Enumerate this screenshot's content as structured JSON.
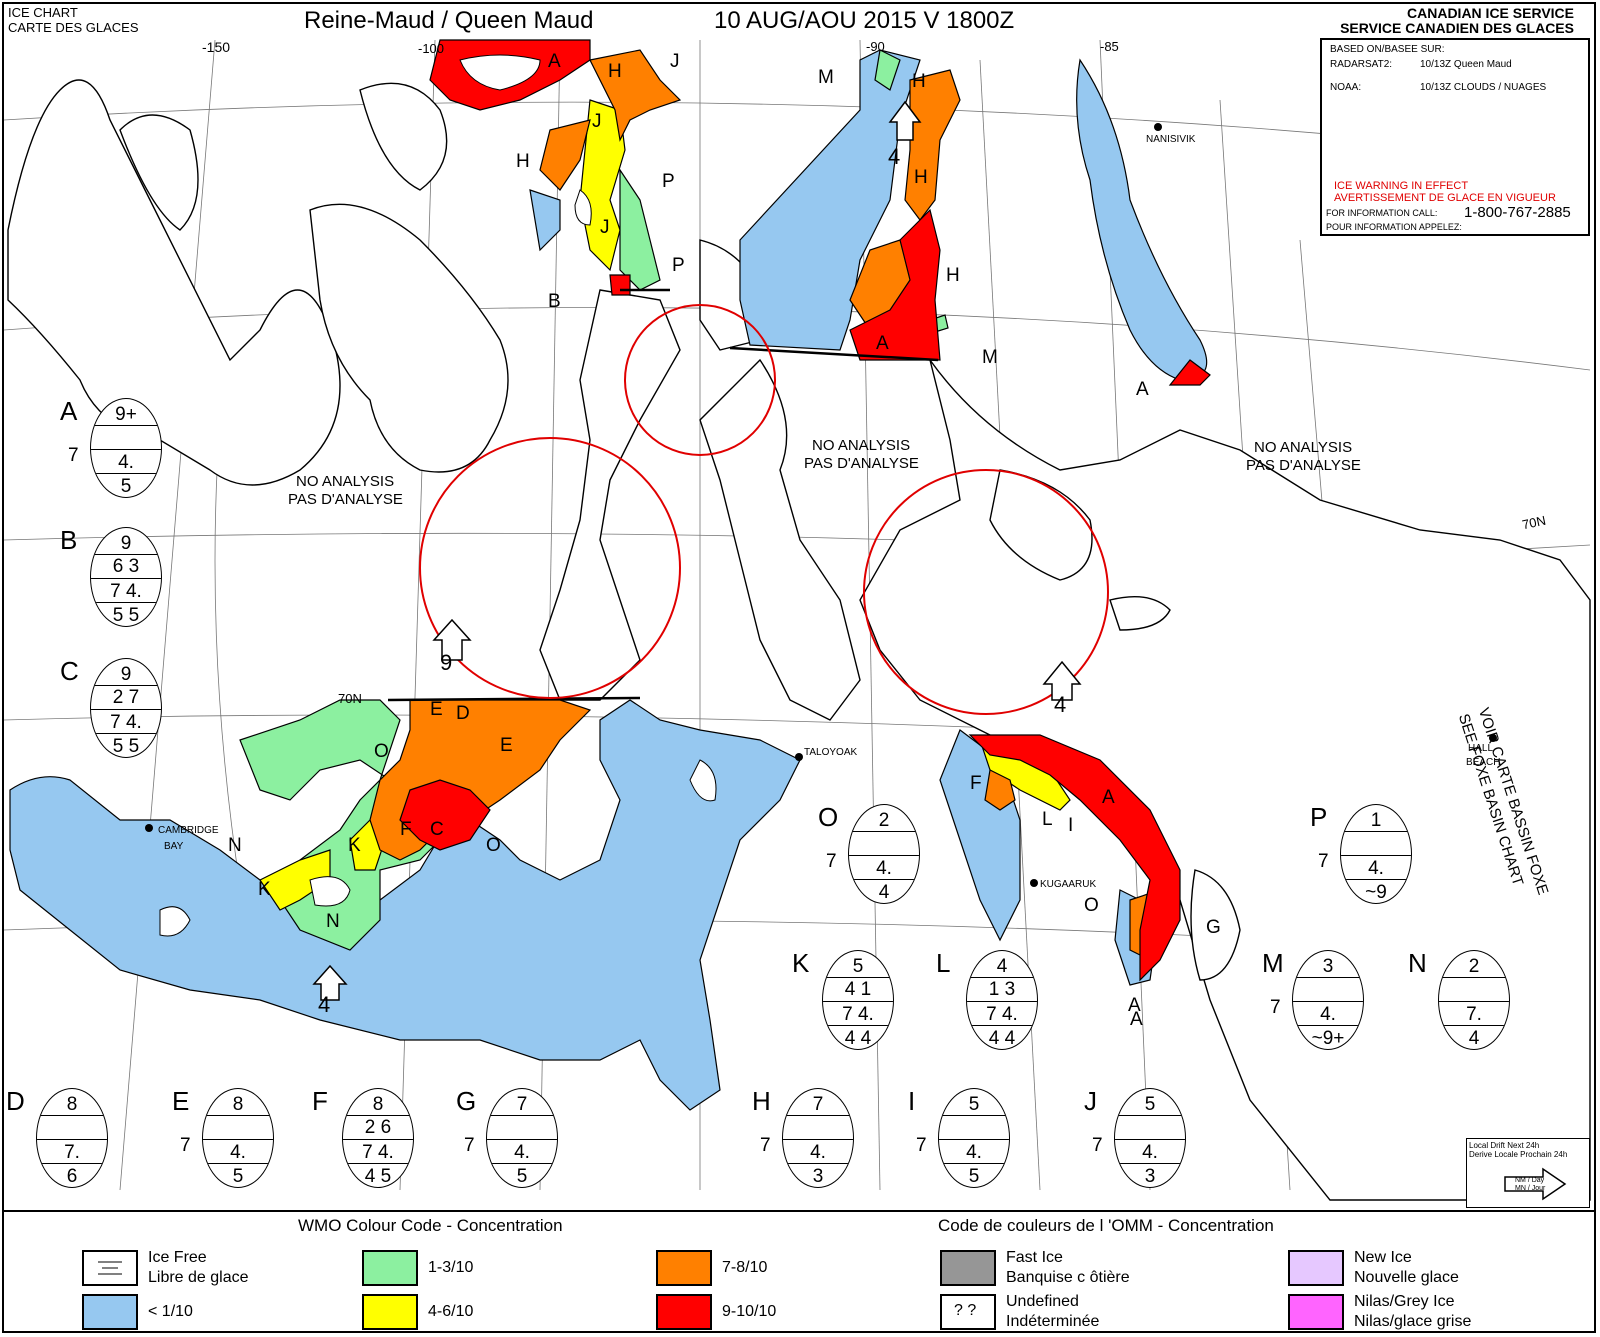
{
  "header": {
    "ice_chart": "ICE CHART",
    "carte_glaces": "CARTE DES GLACES",
    "region": "Reine-Maud / Queen Maud",
    "date": "10 AUG/AOU 2015  V 1800Z",
    "agency_en": "CANADIAN ICE SERVICE",
    "agency_fr": "SERVICE CANADIEN DES GLACES"
  },
  "info_box": {
    "based_on": "BASED ON/BASEE SUR:",
    "radarsat_label": "RADARSAT2:",
    "radarsat_value": "10/13Z Queen Maud",
    "noaa_label": "NOAA:",
    "noaa_value": "10/13Z CLOUDS / NUAGES",
    "warning_en": "ICE WARNING IN EFFECT",
    "warning_fr": "AVERTISSEMENT DE GLACE EN VIGUEUR",
    "info_call": "FOR INFORMATION CALL:",
    "info_fr": "POUR INFORMATION APPELEZ:",
    "phone": "1-800-767-2885"
  },
  "map_labels": {
    "lon_150": "-150",
    "lon_100": "-100",
    "lon_90": "-90",
    "lon_85": "-85",
    "lat_70n_left": "70N",
    "lat_70n_right": "70N",
    "no_analysis_en": "NO ANALYSIS",
    "no_analysis_fr": "PAS D'ANALYSE",
    "nanisivik": "NANISIVIK",
    "taloyoak": "TALOYOAK",
    "cambridge": "CAMBRIDGE",
    "bay": "BAY",
    "kugaaruk": "KUGAARUK",
    "hall": "HALL",
    "beach": "BEACH",
    "foxe_en": "SEE FOXE BASIN CHART",
    "foxe_fr": "VOIR CARTE BASSIN FOXE",
    "drift_1": "Local Drift Next 24h",
    "drift_2": "Derive Locale Prochain 24h",
    "drift_3": "NM / Day",
    "drift_4": "MN / Jour",
    "drift_arrow_values": [
      "9",
      "4",
      "4",
      "4"
    ]
  },
  "region_letters": [
    "A",
    "A",
    "A",
    "A",
    "A",
    "A",
    "B",
    "D",
    "E",
    "E",
    "F",
    "F",
    "C",
    "K",
    "K",
    "N",
    "N",
    "O",
    "O",
    "O",
    "J",
    "J",
    "J",
    "H",
    "H",
    "H",
    "H",
    "H",
    "P",
    "P",
    "M",
    "M",
    "L",
    "I",
    "G"
  ],
  "egg_codes": [
    {
      "letter": "A",
      "side": "7",
      "rows": [
        "9+",
        "",
        "4.",
        "5"
      ],
      "dividers": 4
    },
    {
      "letter": "B",
      "side": "",
      "rows": [
        "9",
        "6 3",
        "7 4.",
        "5 5"
      ],
      "dividers": 4
    },
    {
      "letter": "C",
      "side": "",
      "rows": [
        "9",
        "2 7",
        "7 4.",
        "5 5"
      ],
      "dividers": 4
    },
    {
      "letter": "O",
      "side": "7",
      "rows": [
        "2",
        "",
        "4.",
        "4"
      ],
      "dividers": 4
    },
    {
      "letter": "P",
      "side": "7",
      "rows": [
        "1",
        "",
        "4.",
        "~9"
      ],
      "dividers": 4
    },
    {
      "letter": "K",
      "side": "",
      "rows": [
        "5",
        "4 1",
        "7 4.",
        "4 4"
      ],
      "dividers": 4
    },
    {
      "letter": "L",
      "side": "",
      "rows": [
        "4",
        "1 3",
        "7 4.",
        "4 4"
      ],
      "dividers": 4
    },
    {
      "letter": "M",
      "side": "7",
      "rows": [
        "3",
        "",
        "4.",
        "~9+"
      ],
      "dividers": 4
    },
    {
      "letter": "N",
      "side": "",
      "rows": [
        "2",
        "",
        "7.",
        "4"
      ],
      "dividers": 4
    },
    {
      "letter": "D",
      "side": "",
      "rows": [
        "8",
        "",
        "7.",
        "6"
      ],
      "dividers": 4
    },
    {
      "letter": "E",
      "side": "7",
      "rows": [
        "8",
        "",
        "4.",
        "5"
      ],
      "dividers": 4
    },
    {
      "letter": "F",
      "side": "",
      "rows": [
        "8",
        "2 6",
        "7 4.",
        "4 5"
      ],
      "dividers": 4
    },
    {
      "letter": "G",
      "side": "7",
      "rows": [
        "7",
        "",
        "4.",
        "5"
      ],
      "dividers": 4
    },
    {
      "letter": "H",
      "side": "7",
      "rows": [
        "7",
        "",
        "4.",
        "3"
      ],
      "dividers": 4
    },
    {
      "letter": "I",
      "side": "7",
      "rows": [
        "5",
        "",
        "4.",
        "5"
      ],
      "dividers": 4
    },
    {
      "letter": "J",
      "side": "7",
      "rows": [
        "5",
        "",
        "4.",
        "3"
      ],
      "dividers": 4
    }
  ],
  "legend": {
    "title_en": "WMO Colour Code - Concentration",
    "title_fr": "Code de couleurs de l 'OMM - Concentration",
    "items": [
      {
        "id": "ice-free",
        "label1": "Ice Free",
        "label2": "Libre de glace",
        "color": "#ffffff"
      },
      {
        "id": "lt1",
        "label1": "< 1/10",
        "label2": "",
        "color": "#96c8f0"
      },
      {
        "id": "c13",
        "label1": "1-3/10",
        "label2": "",
        "color": "#8cf0a0"
      },
      {
        "id": "c46",
        "label1": "4-6/10",
        "label2": "",
        "color": "#ffff00"
      },
      {
        "id": "c78",
        "label1": "7-8/10",
        "label2": "",
        "color": "#ff8000"
      },
      {
        "id": "c910",
        "label1": "9-10/10",
        "label2": "",
        "color": "#ff0000"
      },
      {
        "id": "fast",
        "label1": "Fast Ice",
        "label2": "Banquise c ôtière",
        "color": "#969696"
      },
      {
        "id": "undef",
        "label1": "Undefined",
        "label2": "Indéterminée",
        "color": "#ffffff",
        "glyph": "? ?"
      },
      {
        "id": "new",
        "label1": "New Ice",
        "label2": "Nouvelle glace",
        "color": "#e6c8ff"
      },
      {
        "id": "nilas",
        "label1": "Nilas/Grey Ice",
        "label2": "Nilas/glace grise",
        "color": "#ff64ff"
      }
    ]
  },
  "colors": {
    "blue": "#96c8f0",
    "green": "#8cf0a0",
    "yellow": "#ffff00",
    "orange": "#ff8000",
    "red": "#ff0000",
    "circle": "#e00000"
  }
}
